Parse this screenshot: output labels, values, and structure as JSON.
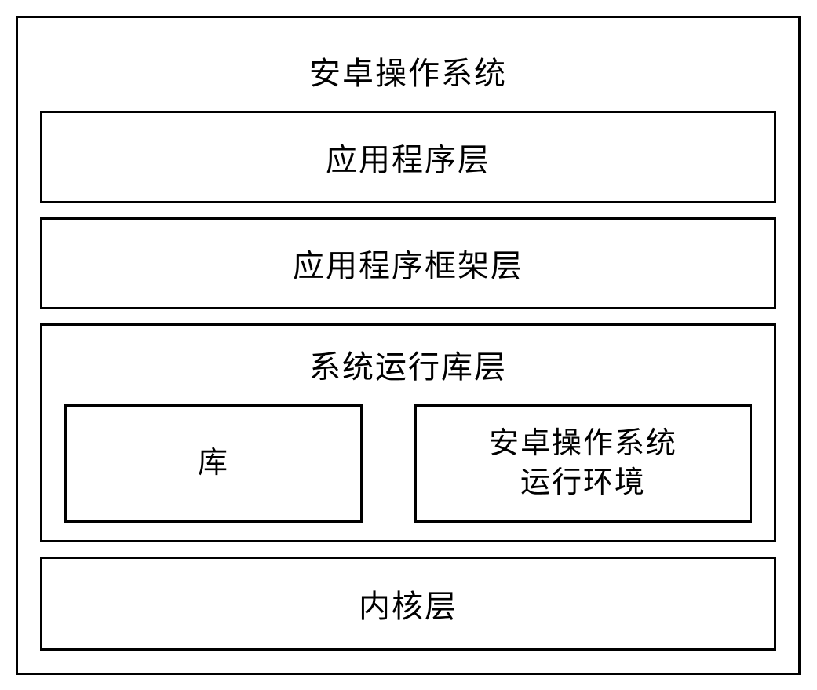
{
  "diagram": {
    "type": "nested-box-diagram",
    "title": "安卓操作系统",
    "background_color": "#ffffff",
    "border_color": "#000000",
    "border_width": 3,
    "text_color": "#000000",
    "font_family": "SimSun",
    "title_fontsize": 40,
    "label_fontsize": 40,
    "sublabel_fontsize": 38,
    "layers": {
      "application": {
        "label": "应用程序层",
        "order": 1
      },
      "framework": {
        "label": "应用程序框架层",
        "order": 2
      },
      "runtime": {
        "label": "系统运行库层",
        "order": 3,
        "subboxes": {
          "libraries": {
            "label": "库"
          },
          "runtime_env": {
            "line1": "安卓操作系统",
            "line2": "运行环境"
          }
        }
      },
      "kernel": {
        "label": "内核层",
        "order": 4
      }
    }
  }
}
